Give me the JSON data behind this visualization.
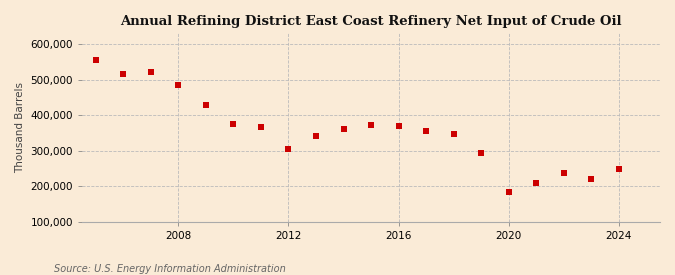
{
  "title": "Annual Refining District East Coast Refinery Net Input of Crude Oil",
  "ylabel": "Thousand Barrels",
  "source": "Source: U.S. Energy Information Administration",
  "background_color": "#faebd7",
  "plot_bg_color": "#faebd7",
  "marker_color": "#cc0000",
  "marker": "s",
  "marker_size": 4,
  "grid_color": "#bbbbbb",
  "xlim": [
    2004.5,
    2025.5
  ],
  "ylim": [
    100000,
    630000
  ],
  "yticks": [
    100000,
    200000,
    300000,
    400000,
    500000,
    600000
  ],
  "xticks": [
    2008,
    2012,
    2016,
    2020,
    2024
  ],
  "years": [
    2005,
    2006,
    2007,
    2008,
    2009,
    2010,
    2011,
    2012,
    2013,
    2014,
    2015,
    2016,
    2017,
    2018,
    2019,
    2020,
    2021,
    2022,
    2023,
    2024
  ],
  "values": [
    555000,
    515000,
    520000,
    485000,
    428000,
    375000,
    367000,
    305000,
    342000,
    360000,
    373000,
    370000,
    356000,
    347000,
    292000,
    185000,
    208000,
    238000,
    220000,
    248000
  ]
}
